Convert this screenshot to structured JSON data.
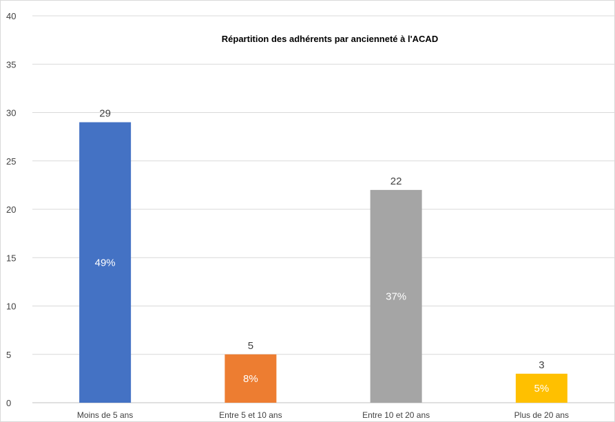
{
  "chart_data": {
    "type": "bar",
    "title": "Répartition des adhérents par ancienneté à l'ACAD",
    "xlabel": "",
    "ylabel": "",
    "ylim": [
      0,
      40
    ],
    "yticks": [
      0,
      5,
      10,
      15,
      20,
      25,
      30,
      35,
      40
    ],
    "categories": [
      "Moins de 5 ans",
      "Entre 5 et 10 ans",
      "Entre 10 et 20 ans",
      "Plus de 20 ans"
    ],
    "values": [
      29,
      5,
      22,
      3
    ],
    "percent_labels": [
      "49%",
      "8%",
      "37%",
      "5%"
    ],
    "colors": [
      "#4472c4",
      "#ed7d31",
      "#a5a5a5",
      "#ffc000"
    ],
    "grid": true,
    "legend": "none"
  }
}
